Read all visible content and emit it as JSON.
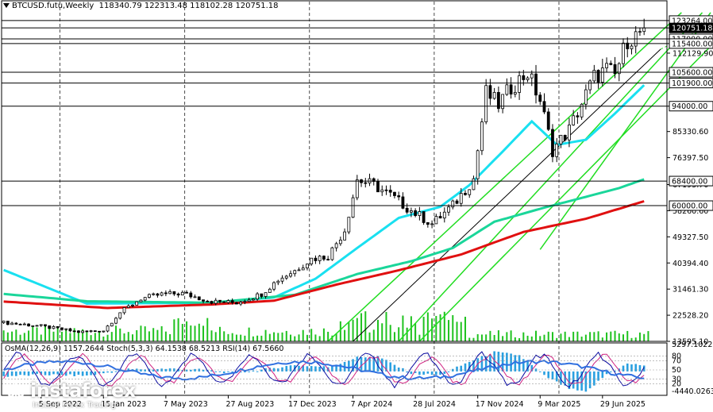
{
  "header": {
    "symbol": "BTCUSD.futu,Weekly",
    "ohlc": "118340.79 122313.48 118102.28 120751.18"
  },
  "logo": {
    "brand": "instaforex",
    "tagline": "Instant Forex Trading"
  },
  "colors": {
    "sma_fast": "#19e0f0",
    "sma_mid": "#1ad69a",
    "sma_slow": "#e01010",
    "channel": "#22dd22",
    "trendline": "#000000",
    "candle": "#000000",
    "volume": "#1fc21f",
    "osma": "#2aa0e0",
    "stoch_main": "#0a0aa0",
    "stoch_signal": "#d02080",
    "rsi": "#3070e0",
    "grid": "#000000"
  },
  "chart_data": [
    {
      "type": "candlestick",
      "title": "BTCUSD.futu,Weekly",
      "timeframe": "Weekly",
      "ylim": [
        13595.1,
        126500
      ],
      "y_ticks": [
        "13595.10",
        "22528.20",
        "31461.30",
        "40394.40",
        "49327.50",
        "58260.60",
        "67193.70",
        "76397.50",
        "85330.60",
        "94000.00",
        "101900.00",
        "105600.00",
        "112129.90",
        "115400.00",
        "117000.00",
        "120751.18",
        "123264.00"
      ],
      "x_tick_labels": [
        "5 Sep 2022",
        "15 Jan 2023",
        "7 May 2023",
        "27 Aug 2023",
        "17 Dec 2023",
        "7 Apr 2024",
        "28 Jul 2024",
        "17 Nov 2024",
        "9 Mar 2025",
        "29 Jun 2025"
      ],
      "horizontal_levels": [
        123264.0,
        120751.18,
        117000.0,
        115400.0,
        105600.0,
        101900.0,
        94000.0,
        68400.0,
        60000.0
      ],
      "boxed_levels": [
        {
          "value": 123264.0,
          "label": "123264.00"
        },
        {
          "value": 120751.18,
          "label": "120751.18",
          "current": true
        },
        {
          "value": 117000.0,
          "label": "117000.00"
        },
        {
          "value": 115400.0,
          "label": "115400.00"
        },
        {
          "value": 105600.0,
          "label": "105600.00"
        },
        {
          "value": 101900.0,
          "label": "101900.00"
        },
        {
          "value": 94000.0,
          "label": "94000.00"
        },
        {
          "value": 68400.0,
          "label": "68400.00"
        },
        {
          "value": 60000.0,
          "label": "60000.00"
        }
      ],
      "close_anchors": [
        [
          0,
          20000
        ],
        [
          8,
          19000
        ],
        [
          18,
          16800
        ],
        [
          24,
          17300
        ],
        [
          28,
          23500
        ],
        [
          33,
          28200
        ],
        [
          38,
          29700
        ],
        [
          43,
          30000
        ],
        [
          50,
          27200
        ],
        [
          56,
          26800
        ],
        [
          62,
          29800
        ],
        [
          66,
          34700
        ],
        [
          70,
          37800
        ],
        [
          74,
          41800
        ],
        [
          78,
          42700
        ],
        [
          82,
          51700
        ],
        [
          85,
          68900
        ],
        [
          89,
          67000
        ],
        [
          93,
          63500
        ],
        [
          98,
          58300
        ],
        [
          103,
          53800
        ],
        [
          108,
          60000
        ],
        [
          113,
          69200
        ],
        [
          116,
          98600
        ],
        [
          119,
          94500
        ],
        [
          122,
          100500
        ],
        [
          126,
          105500
        ],
        [
          129,
          96000
        ],
        [
          132,
          79000
        ],
        [
          136,
          86000
        ],
        [
          139,
          95000
        ],
        [
          142,
          104000
        ],
        [
          145,
          106500
        ],
        [
          147,
          104500
        ],
        [
          150,
          117000
        ],
        [
          152,
          118000
        ],
        [
          154,
          120751
        ]
      ],
      "series": [
        {
          "name": "SMA fast",
          "color": "#19e0f0",
          "points": [
            [
              0,
              38000
            ],
            [
              20,
              26500
            ],
            [
              50,
              26800
            ],
            [
              65,
              28600
            ],
            [
              75,
              35000
            ],
            [
              85,
              45500
            ],
            [
              95,
              55800
            ],
            [
              105,
              59600
            ],
            [
              112,
              67000
            ],
            [
              120,
              78500
            ],
            [
              127,
              88800
            ],
            [
              133,
              80800
            ],
            [
              140,
              82500
            ],
            [
              147,
              91500
            ],
            [
              154,
              101200
            ]
          ]
        },
        {
          "name": "SMA mid",
          "color": "#1ad69a",
          "points": [
            [
              0,
              29800
            ],
            [
              20,
              27300
            ],
            [
              50,
              26800
            ],
            [
              70,
              29500
            ],
            [
              85,
              36600
            ],
            [
              98,
              41000
            ],
            [
              108,
              45500
            ],
            [
              118,
              54500
            ],
            [
              130,
              59300
            ],
            [
              140,
              63000
            ],
            [
              148,
              66000
            ],
            [
              154,
              69000
            ]
          ]
        },
        {
          "name": "SMA slow",
          "color": "#e01010",
          "points": [
            [
              0,
              27200
            ],
            [
              25,
              25000
            ],
            [
              50,
              26200
            ],
            [
              65,
              27500
            ],
            [
              80,
              33000
            ],
            [
              95,
              37900
            ],
            [
              110,
              43300
            ],
            [
              125,
              51000
            ],
            [
              140,
              55500
            ],
            [
              154,
              61500
            ]
          ]
        }
      ],
      "channels": [
        {
          "lower": [
            [
              78,
              13600
            ],
            [
              163,
              126000
            ]
          ],
          "upper": [
            [
              95,
              13600
            ],
            [
              168,
              126000
            ]
          ]
        },
        {
          "lower": [
            [
              100,
              13600
            ],
            [
              178,
              126000
            ]
          ],
          "upper": [
            [
              129,
              45000
            ],
            [
              170,
              126000
            ]
          ]
        }
      ],
      "trendline": [
        [
          84,
          13600
        ],
        [
          158,
          113500
        ]
      ],
      "trendline_dotted": [
        [
          158,
          113500
        ],
        [
          176,
          126000
        ]
      ]
    },
    {
      "type": "indicator",
      "title": "OsMA(12,26,9) 1157.2644",
      "indicators": [
        "OsMA(12,26,9) 1157.2644",
        "Stoch(5,3,3) 64.1538 68.5213",
        "RSI(14) 67.5660"
      ],
      "ylim": [
        -4440.0263,
        5297.1022
      ],
      "y_ticks": [
        "5297.1022",
        "80",
        "70",
        "50",
        "20",
        "-4440.0263"
      ],
      "y_ticks_extra": [
        "30"
      ],
      "osma_values": [
        [
          0,
          -900
        ],
        [
          10,
          -600
        ],
        [
          20,
          -800
        ],
        [
          30,
          400
        ],
        [
          40,
          500
        ],
        [
          48,
          300
        ],
        [
          55,
          -300
        ],
        [
          62,
          300
        ],
        [
          70,
          1200
        ],
        [
          78,
          800
        ],
        [
          85,
          2600
        ],
        [
          90,
          2800
        ],
        [
          98,
          -400
        ],
        [
          105,
          -700
        ],
        [
          112,
          1800
        ],
        [
          118,
          3600
        ],
        [
          124,
          3000
        ],
        [
          130,
          -800
        ],
        [
          136,
          -3200
        ],
        [
          140,
          -3900
        ],
        [
          145,
          -500
        ],
        [
          150,
          1400
        ],
        [
          154,
          1157
        ]
      ]
    }
  ]
}
